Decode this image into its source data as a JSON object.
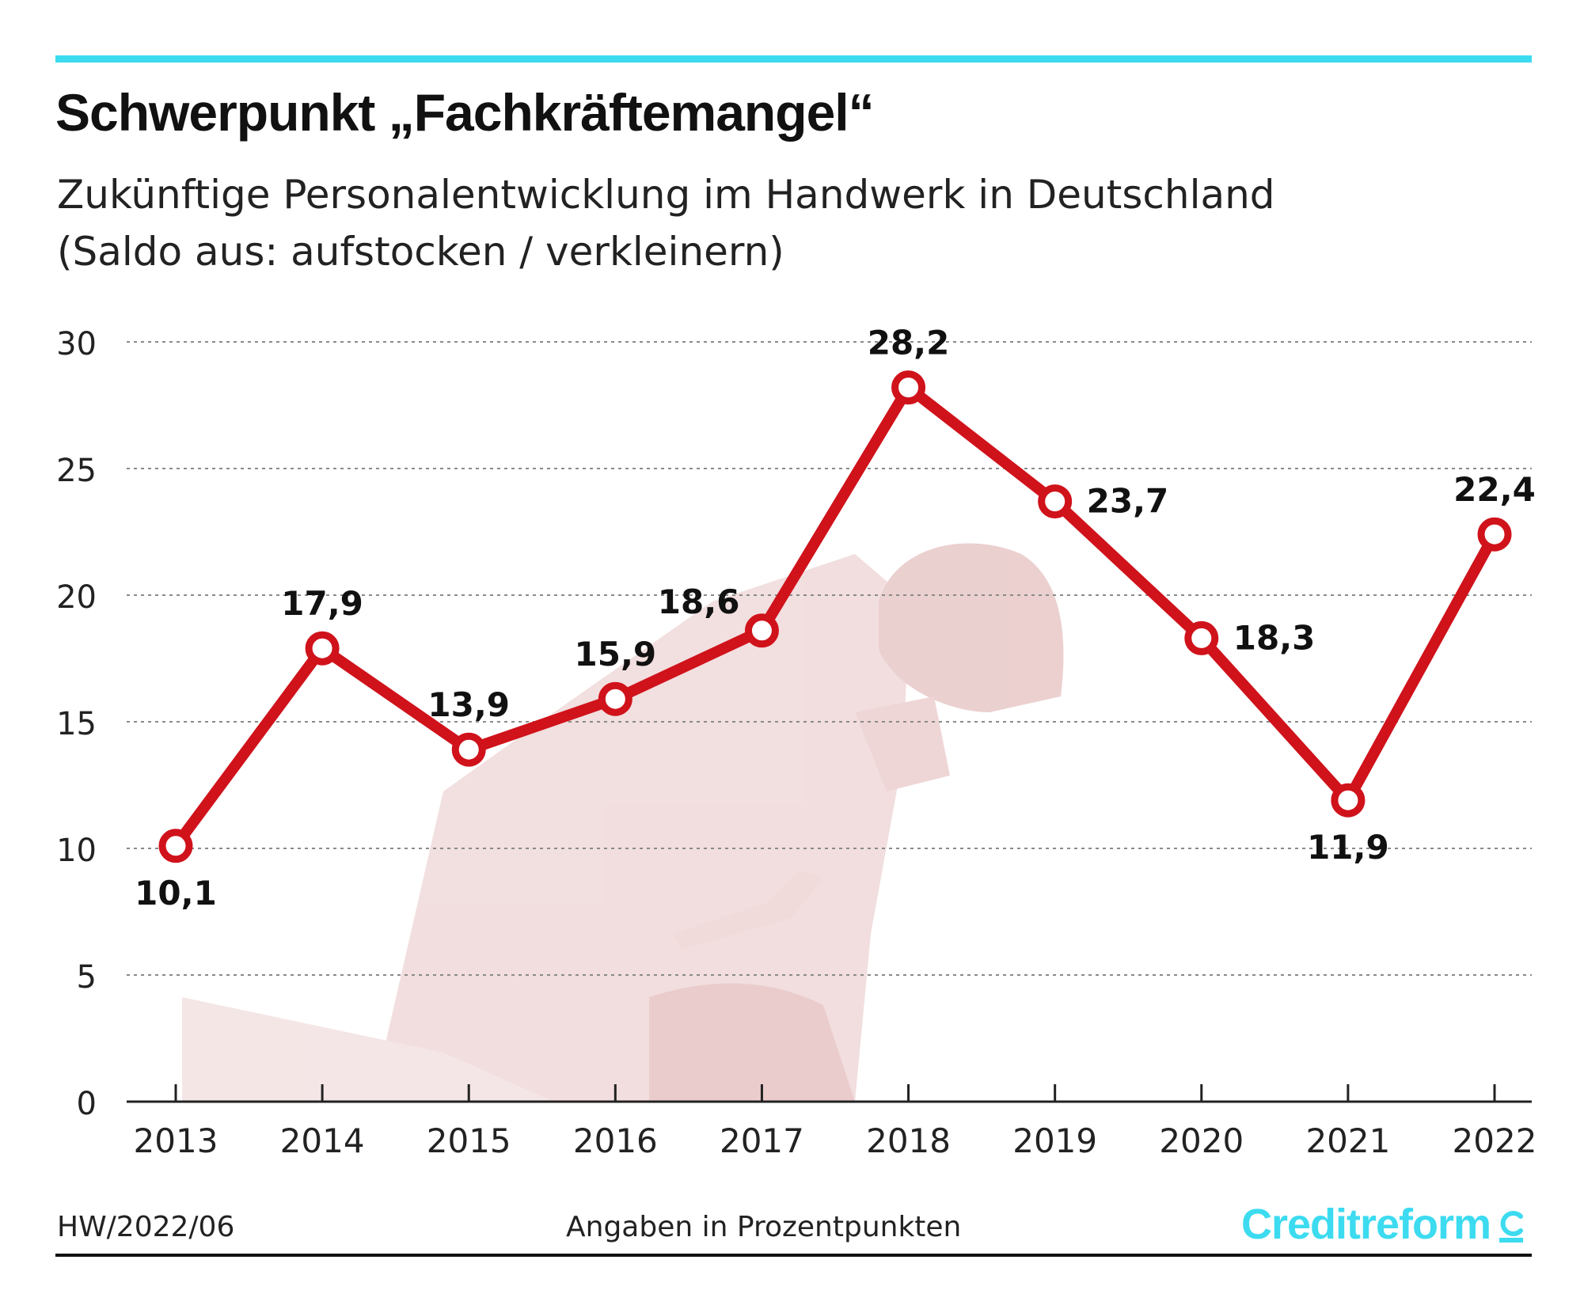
{
  "header": {
    "title": "Schwerpunkt „Fachkräftemangel“",
    "subtitle_line1": "Zukünftige Personalentwicklung im Handwerk in Deutschland",
    "subtitle_line2": "(Saldo aus: aufstocken / verkleinern)"
  },
  "footer": {
    "source": "HW/2022/06",
    "note": "Angaben in Prozentpunkten",
    "logo": "Creditreform"
  },
  "colors": {
    "accent_rule": "#3cdbf0",
    "line": "#d0121b",
    "logo": "#3cdbf0",
    "photo_tint": "#e8c4c4"
  },
  "background_image": "construction-worker-photo (faded)",
  "chart_data": {
    "type": "line",
    "title": "Schwerpunkt „Fachkräftemangel“",
    "categories": [
      "2013",
      "2014",
      "2015",
      "2016",
      "2017",
      "2018",
      "2019",
      "2020",
      "2021",
      "2022"
    ],
    "series": [
      {
        "values": [
          10.1,
          17.9,
          13.9,
          15.9,
          18.6,
          28.2,
          23.7,
          18.3,
          11.9,
          22.4
        ],
        "labels": [
          "10,1",
          "17,9",
          "13,9",
          "15,9",
          "18,6",
          "28,2",
          "23,7",
          "18,3",
          "11,9",
          "22,4"
        ],
        "label_positions": [
          "below",
          "above",
          "above",
          "above",
          "above-left",
          "above",
          "right",
          "right",
          "below",
          "above"
        ]
      }
    ],
    "ylim": [
      0,
      30
    ],
    "yticks": [
      0,
      5,
      10,
      15,
      20,
      25,
      30
    ],
    "ytick_labels": [
      "0",
      "5",
      "10",
      "15",
      "20",
      "25",
      "30"
    ],
    "grid": "horizontal dotted",
    "xlabel": "",
    "ylabel": ""
  }
}
